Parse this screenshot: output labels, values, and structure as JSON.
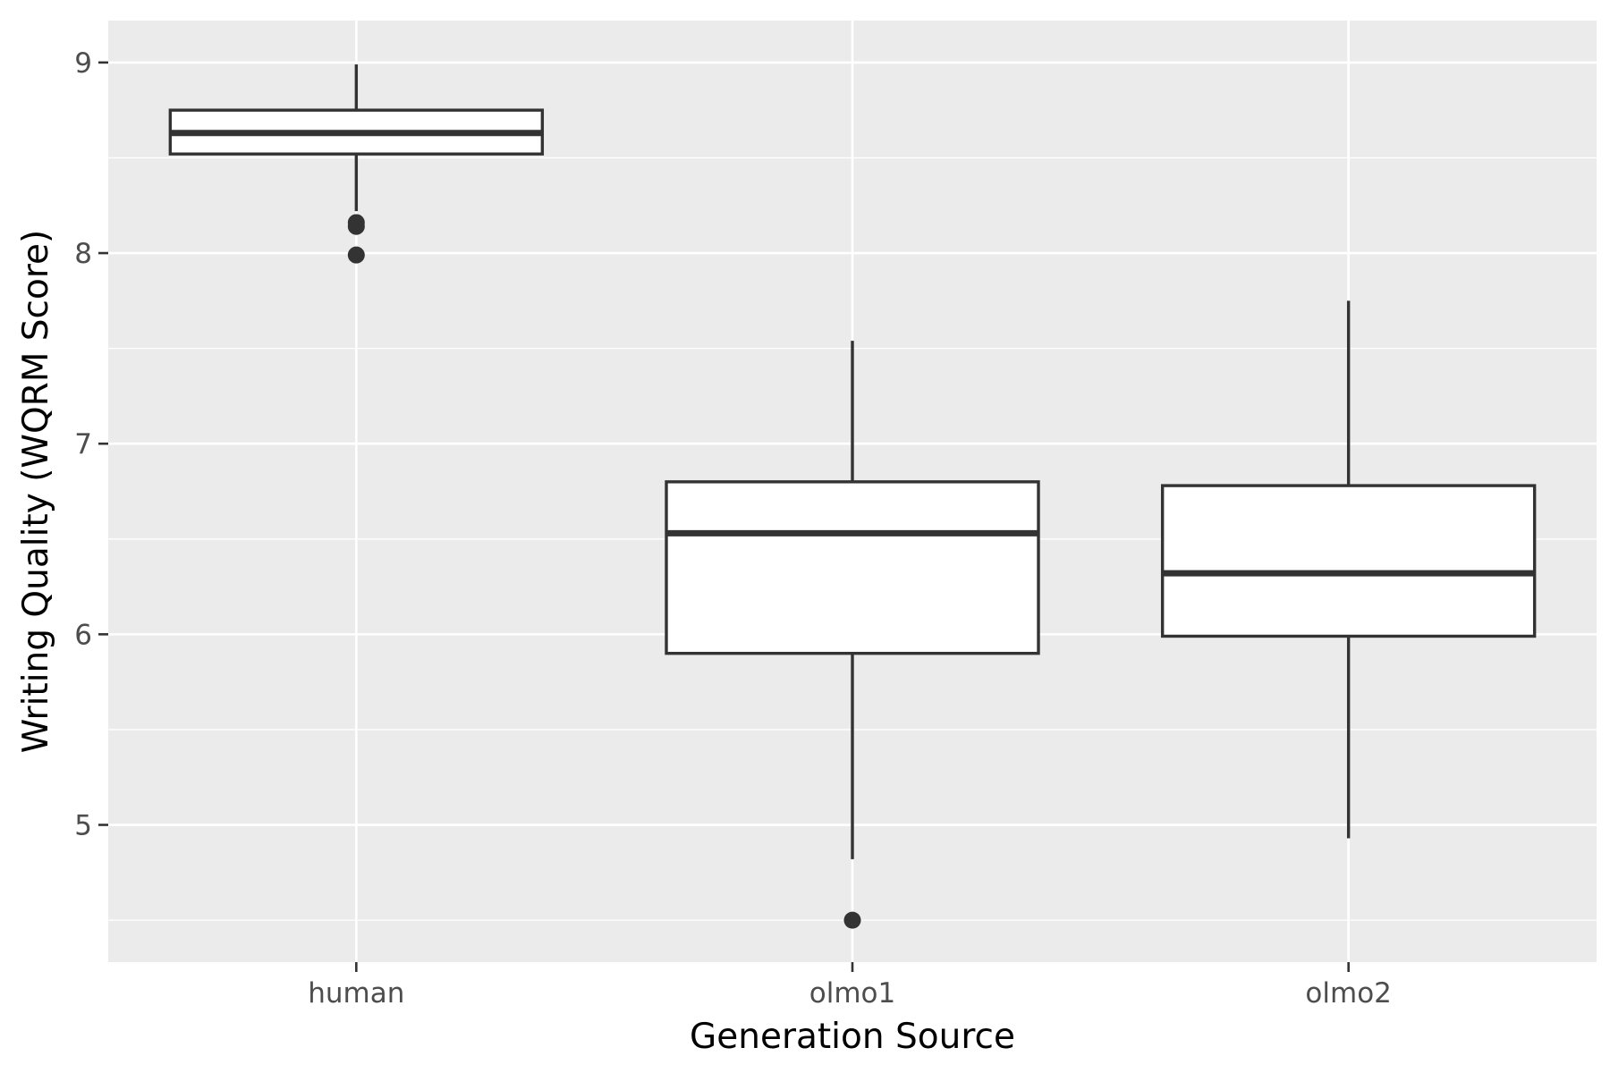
{
  "chart_data": {
    "type": "boxplot",
    "title": "",
    "xlabel": "Generation Source",
    "ylabel": "Writing Quality (WQRM Score)",
    "categories": [
      "human",
      "olmo1",
      "olmo2"
    ],
    "boxes": [
      {
        "category": "human",
        "whisker_low": 8.22,
        "q1": 8.52,
        "median": 8.63,
        "q3": 8.75,
        "whisker_high": 8.99,
        "outliers": [
          8.16,
          8.14,
          7.99
        ]
      },
      {
        "category": "olmo1",
        "whisker_low": 4.82,
        "q1": 5.9,
        "median": 6.53,
        "q3": 6.8,
        "whisker_high": 7.54,
        "outliers": [
          4.5
        ]
      },
      {
        "category": "olmo2",
        "whisker_low": 4.93,
        "q1": 5.99,
        "median": 6.32,
        "q3": 6.78,
        "whisker_high": 7.75,
        "outliers": []
      }
    ],
    "yticks": [
      5,
      6,
      7,
      8,
      9
    ],
    "ytick_labels": [
      "5",
      "6",
      "7",
      "8",
      "9"
    ],
    "ylim": [
      4.28,
      9.22
    ],
    "grid": true,
    "legend": "none"
  }
}
